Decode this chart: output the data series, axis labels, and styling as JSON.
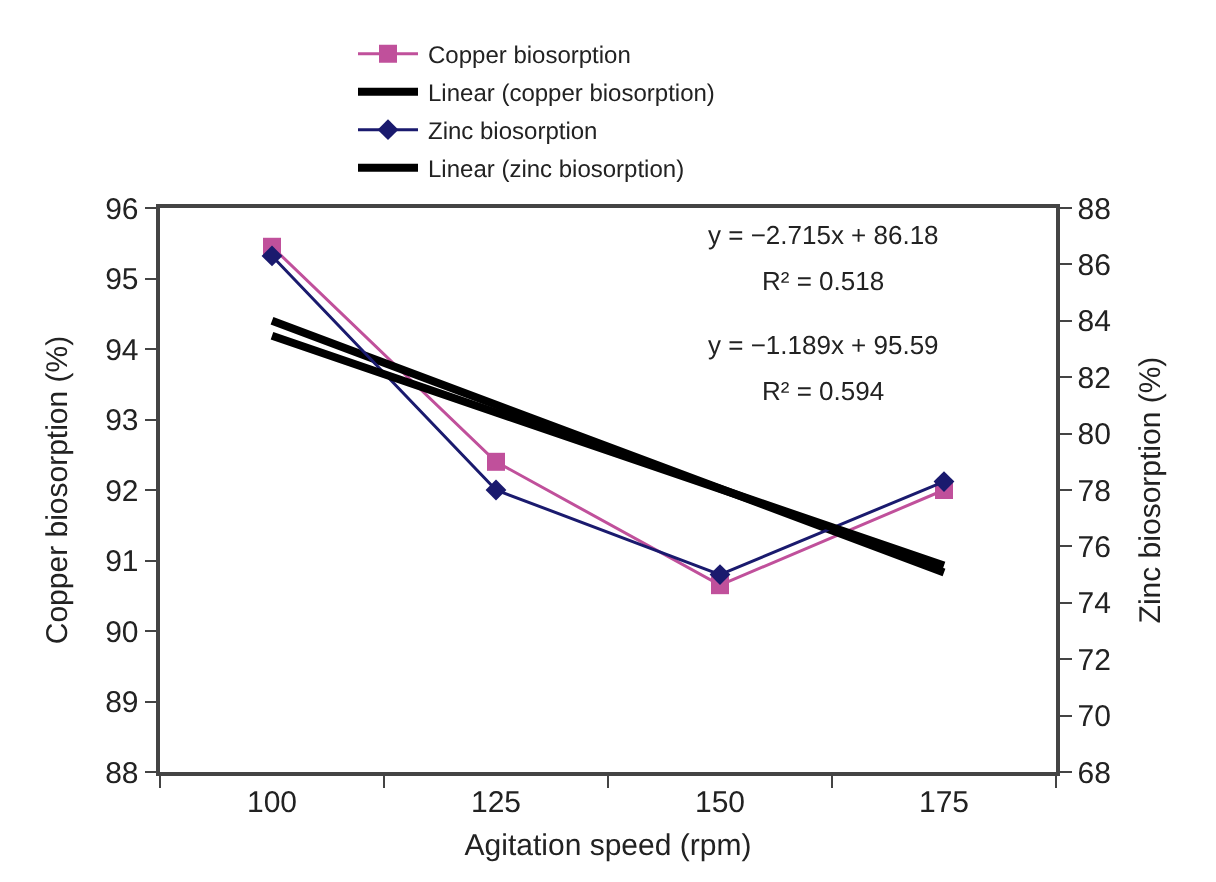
{
  "chart_data": {
    "type": "line",
    "xlabel": "Agitation speed (rpm)",
    "ylabel": "Copper biosorption (%)",
    "y2label": "Zinc biosorption (%)",
    "categories": [
      "100",
      "125",
      "150",
      "175"
    ],
    "series": [
      {
        "name": "Copper biosorption",
        "color": "#c0509b",
        "marker": "square",
        "values": [
          95.45,
          92.4,
          90.65,
          92.0
        ]
      },
      {
        "name": "Linear (copper biosorption)",
        "color": "#000000",
        "marker": "none",
        "values": [
          94.4,
          93.21,
          92.02,
          90.83
        ]
      },
      {
        "name": "Zinc biosorption",
        "color": "#1a1a6e",
        "marker": "diamond",
        "axis": "y2",
        "values": [
          86.3,
          78.0,
          75.0,
          78.3
        ]
      },
      {
        "name": "Linear (zinc biosorption)",
        "color": "#000000",
        "marker": "none",
        "axis": "y2",
        "values": [
          83.47,
          80.75,
          78.04,
          75.32
        ]
      }
    ],
    "ylim": [
      88,
      96
    ],
    "yticks": [
      88,
      89,
      90,
      91,
      92,
      93,
      94,
      95,
      96
    ],
    "y2lim": [
      68,
      88
    ],
    "y2ticks": [
      68,
      70,
      72,
      74,
      76,
      78,
      80,
      82,
      84,
      86,
      88
    ],
    "annotations": [
      "y = −2.715x + 86.18",
      "R² = 0.518",
      "y = −1.189x + 95.59",
      "R² = 0.594"
    ],
    "legend": "top",
    "line_style": "solid"
  }
}
